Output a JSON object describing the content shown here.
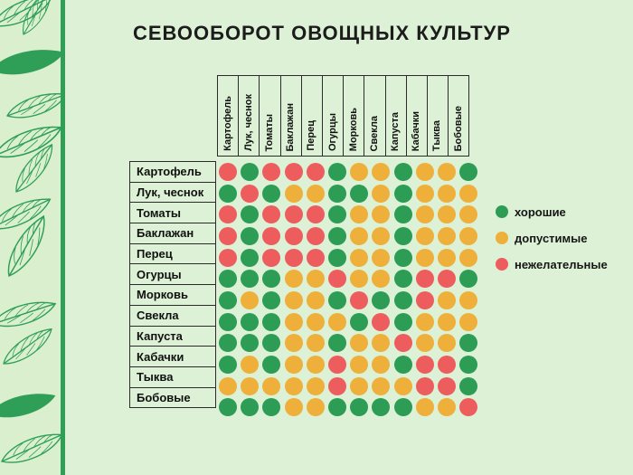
{
  "title": "СЕВООБОРОТ ОВОЩНЫХ КУЛЬТУР",
  "legend": [
    {
      "label": "хорошие",
      "status": "good"
    },
    {
      "label": "допустимые",
      "status": "ok"
    },
    {
      "label": "нежелательные",
      "status": "bad"
    }
  ],
  "colors": {
    "good": "#2d9c54",
    "ok": "#eeb03a",
    "bad": "#ee5d5d",
    "background": "#dcf1d5",
    "band_background": "#d9efce",
    "band_green": "#2f9e57",
    "border": "#2b2b2b",
    "title_text": "#1c1c1c"
  },
  "chart_data": {
    "type": "heatmap",
    "title": "СЕВООБОРОТ ОВОЩНЫХ КУЛЬТУР",
    "columns": [
      "Картофель",
      "Лук, чеснок",
      "Томаты",
      "Баклажан",
      "Перец",
      "Огурцы",
      "Морковь",
      "Свекла",
      "Капуста",
      "Кабачки",
      "Тыква",
      "Бобовые"
    ],
    "rows": [
      "Картофель",
      "Лук, чеснок",
      "Томаты",
      "Баклажан",
      "Перец",
      "Огурцы",
      "Морковь",
      "Свекла",
      "Капуста",
      "Кабачки",
      "Тыква",
      "Бобовые"
    ],
    "value_legend": {
      "G": "хорошие",
      "Y": "допустимые",
      "R": "нежелательные"
    },
    "values": [
      "RGRRRGYYGYYG",
      "GRGYYGGYGYYY",
      "RGRRRGYYGYYY",
      "RGRRRGYYGYYY",
      "RGRRRGYYGYYY",
      "GGGYYRYYGRRG",
      "GYGYYGRGGRYY",
      "GGGYYYGRGYYY",
      "GGGYYGYYRYYG",
      "GYGYYRYYGRRG",
      "YYYYYRYYYRRG",
      "GGGYYGGGGYYR"
    ],
    "legend_position": "right",
    "grid": false
  }
}
